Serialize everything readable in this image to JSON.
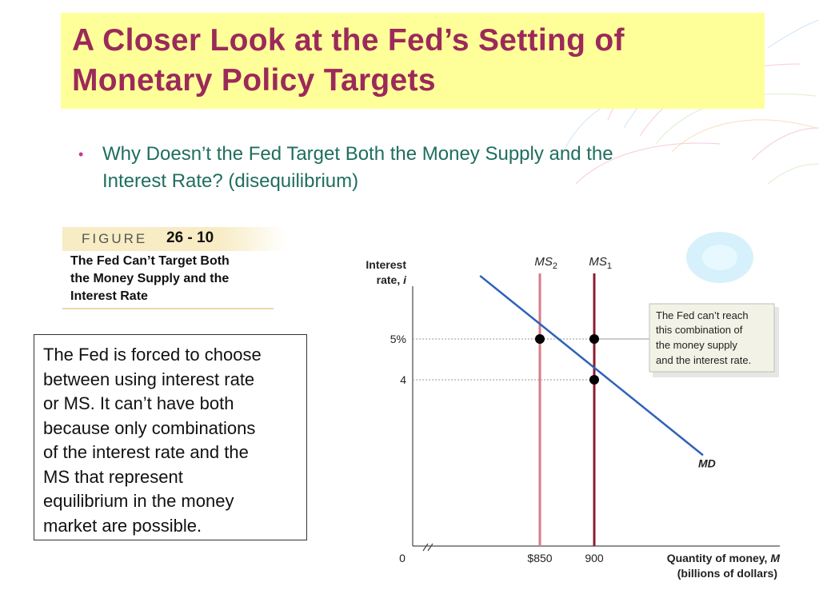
{
  "title": {
    "lines": [
      "A Closer Look at the Fed’s Setting of",
      "Monetary Policy Targets"
    ]
  },
  "bullet": {
    "lines": [
      "Why Doesn’t the Fed Target Both the Money Supply and the",
      "Interest Rate? (disequilibrium)"
    ]
  },
  "figure": {
    "word": "FIGURE",
    "number": "26 - 10",
    "caption_lines": [
      "The Fed Can’t Target Both",
      "the Money Supply and the",
      "Interest Rate"
    ]
  },
  "note": {
    "lines": [
      "The Fed is forced to choose",
      "between using interest rate",
      "or MS. It can’t have both",
      "because only combinations",
      "of the interest rate and the",
      "MS that represent",
      "equilibrium  in the money",
      "market are possible."
    ]
  },
  "colors": {
    "title_text": "#9b2a5a",
    "title_bg": "#ffff99",
    "bullet_text": "#1f6e5e",
    "ms2_line": "#d87c88",
    "ms1_line": "#8a1e32",
    "md_line": "#2e62b8"
  },
  "chart_data": {
    "type": "line",
    "ylabel_lines": [
      "Interest",
      "rate, i"
    ],
    "xlabel_lines": [
      "Quantity of money, M",
      "(billions of dollars)"
    ],
    "origin_label": "0",
    "x_ticks": [
      {
        "value": 850,
        "label": "$850"
      },
      {
        "value": 900,
        "label": "900"
      }
    ],
    "y_ticks": [
      {
        "value": 5,
        "label": "5%"
      },
      {
        "value": 4,
        "label": "4"
      }
    ],
    "series": [
      {
        "name": "MS2",
        "sub": "2",
        "kind": "vertical",
        "x": 850
      },
      {
        "name": "MS1",
        "sub": "1",
        "kind": "vertical",
        "x": 900
      },
      {
        "name": "MD",
        "kind": "line",
        "points": [
          [
            795,
            6.55
          ],
          [
            1000,
            2.15
          ]
        ]
      }
    ],
    "points": [
      {
        "x": 850,
        "y": 5
      },
      {
        "x": 900,
        "y": 5
      },
      {
        "x": 900,
        "y": 4
      }
    ],
    "annotation_lines": [
      "The Fed can’t reach",
      "this combination of",
      "the money supply",
      "and the interest rate."
    ]
  }
}
